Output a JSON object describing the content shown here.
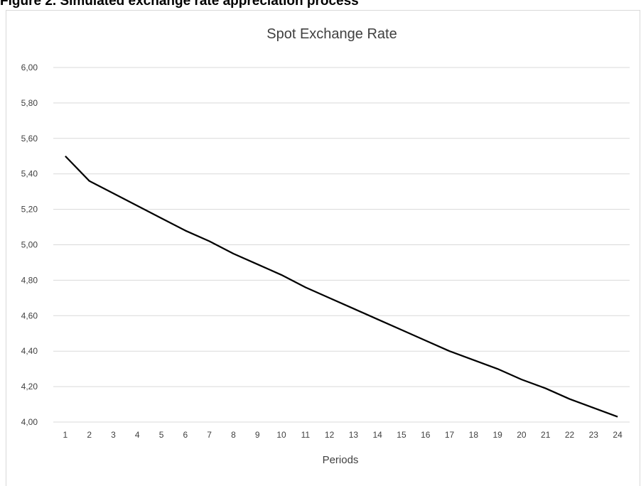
{
  "figure_caption": "Figure 2. Simulated exchange rate appreciation process",
  "chart_data": {
    "type": "line",
    "title": "Spot Exchange Rate",
    "xlabel": "Periods",
    "ylabel": "",
    "x": [
      1,
      2,
      3,
      4,
      5,
      6,
      7,
      8,
      9,
      10,
      11,
      12,
      13,
      14,
      15,
      16,
      17,
      18,
      19,
      20,
      21,
      22,
      23,
      24
    ],
    "x_tick_labels": [
      "1",
      "2",
      "3",
      "4",
      "5",
      "6",
      "7",
      "8",
      "9",
      "10",
      "11",
      "12",
      "13",
      "14",
      "15",
      "16",
      "17",
      "18",
      "19",
      "20",
      "21",
      "22",
      "23",
      "24"
    ],
    "series": [
      {
        "values": [
          5.5,
          5.36,
          5.29,
          5.22,
          5.15,
          5.08,
          5.02,
          4.95,
          4.89,
          4.83,
          4.76,
          4.7,
          4.64,
          4.58,
          4.52,
          4.46,
          4.4,
          4.35,
          4.3,
          4.24,
          4.19,
          4.13,
          4.08,
          4.03
        ],
        "color": "#000000"
      }
    ],
    "ylim": [
      4.0,
      6.0
    ],
    "y_ticks": [
      4.0,
      4.2,
      4.4,
      4.6,
      4.8,
      5.0,
      5.2,
      5.4,
      5.6,
      5.8,
      6.0
    ],
    "y_tick_labels": [
      "4,00",
      "4,20",
      "4,40",
      "4,60",
      "4,80",
      "5,00",
      "5,20",
      "5,40",
      "5,60",
      "5,80",
      "6,00"
    ],
    "grid": true,
    "legend": "none",
    "gridline_color": "#d9d9d9",
    "text_color": "#404040"
  }
}
